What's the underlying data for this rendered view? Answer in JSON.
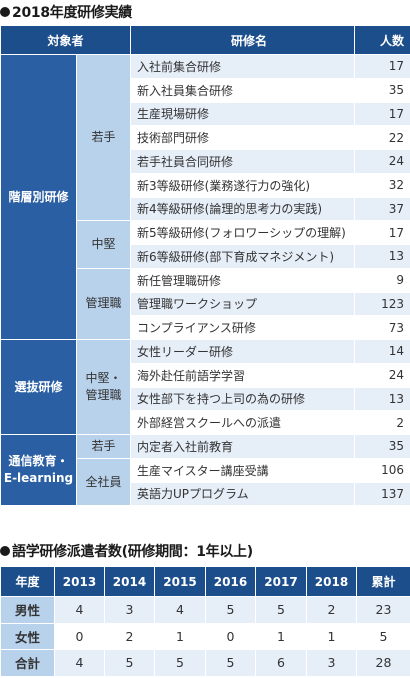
{
  "section1": {
    "title": "2018年度研修実績",
    "headers": {
      "category": "対象者",
      "name": "研修名",
      "count": "人数"
    },
    "categories": {
      "c1": "階層別研修",
      "c2": "選抜研修",
      "c3a": "通信教育・",
      "c3b": "E-learning"
    },
    "subs": {
      "s1": "若手",
      "s2": "中堅",
      "s3": "管理職",
      "s4a": "中堅・",
      "s4b": "管理職",
      "s5": "若手",
      "s6": "全社員"
    },
    "rows": [
      {
        "name": "入社前集合研修",
        "count": "17"
      },
      {
        "name": "新入社員集合研修",
        "count": "35"
      },
      {
        "name": "生産現場研修",
        "count": "17"
      },
      {
        "name": "技術部門研修",
        "count": "22"
      },
      {
        "name": "若手社員合同研修",
        "count": "24"
      },
      {
        "name": "新3等級研修(業務遂行力の強化)",
        "count": "32"
      },
      {
        "name": "新4等級研修(論理的思考力の実践)",
        "count": "37"
      },
      {
        "name": "新5等級研修(フォロワーシップの理解)",
        "count": "17"
      },
      {
        "name": "新6等級研修(部下育成マネジメント)",
        "count": "13"
      },
      {
        "name": "新任管理職研修",
        "count": "9"
      },
      {
        "name": "管理職ワークショップ",
        "count": "123"
      },
      {
        "name": "コンプライアンス研修",
        "count": "73"
      },
      {
        "name": "女性リーダー研修",
        "count": "14"
      },
      {
        "name": "海外赴任前語学学習",
        "count": "24"
      },
      {
        "name": "女性部下を持つ上司の為の研修",
        "count": "13"
      },
      {
        "name": "外部経営スクールへの派遣",
        "count": "2"
      },
      {
        "name": "内定者入社前教育",
        "count": "35"
      },
      {
        "name": "生産マイスター講座受講",
        "count": "106"
      },
      {
        "name": "英語力UPプログラム",
        "count": "137"
      }
    ]
  },
  "section2": {
    "title": "語学研修派遣者数(研修期間：1年以上)",
    "headers": [
      "年度",
      "2013",
      "2014",
      "2015",
      "2016",
      "2017",
      "2018",
      "累計"
    ],
    "rows": [
      {
        "label": "男性",
        "values": [
          "4",
          "3",
          "4",
          "5",
          "5",
          "2",
          "23"
        ]
      },
      {
        "label": "女性",
        "values": [
          "0",
          "2",
          "1",
          "0",
          "1",
          "1",
          "5"
        ]
      },
      {
        "label": "合計",
        "values": [
          "4",
          "5",
          "5",
          "5",
          "6",
          "3",
          "28"
        ]
      }
    ]
  }
}
